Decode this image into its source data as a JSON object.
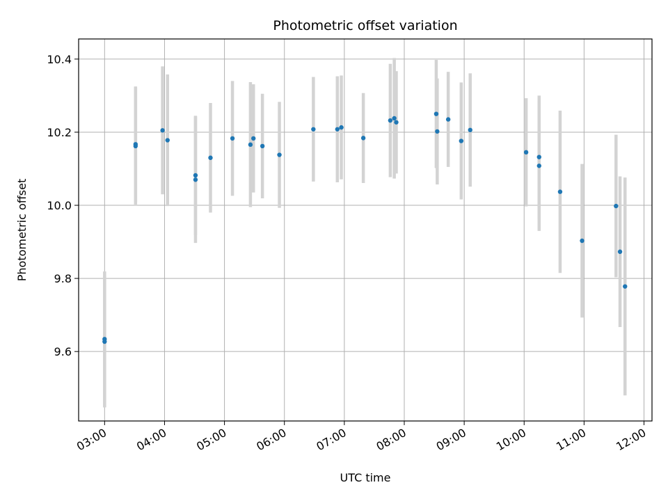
{
  "chart_data": {
    "type": "scatter",
    "title": "Photometric offset variation",
    "xlabel": "UTC time",
    "ylabel": "Photometric offset",
    "grid": true,
    "point_color": "#1f77b4",
    "errorbar_color": "#d3d3d3",
    "x_ticks": [
      "03:00",
      "04:00",
      "05:00",
      "06:00",
      "07:00",
      "08:00",
      "09:00",
      "10:00",
      "11:00",
      "12:00"
    ],
    "y_ticks": [
      9.6,
      9.8,
      10.0,
      10.2,
      10.4
    ],
    "xlim": [
      "02:34",
      "12:08"
    ],
    "ylim": [
      9.41,
      10.455
    ],
    "points": [
      {
        "x": "03:00",
        "y": 9.634,
        "err": 0.185
      },
      {
        "x": "03:00",
        "y": 9.627,
        "err": 0.18
      },
      {
        "x": "03:31",
        "y": 10.167,
        "err": 0.158
      },
      {
        "x": "03:31",
        "y": 10.162,
        "err": 0.16
      },
      {
        "x": "03:58",
        "y": 10.205,
        "err": 0.175
      },
      {
        "x": "04:03",
        "y": 10.178,
        "err": 0.18
      },
      {
        "x": "04:31",
        "y": 10.082,
        "err": 0.163
      },
      {
        "x": "04:31",
        "y": 10.07,
        "err": 0.173
      },
      {
        "x": "04:46",
        "y": 10.13,
        "err": 0.15
      },
      {
        "x": "05:08",
        "y": 10.183,
        "err": 0.157
      },
      {
        "x": "05:26",
        "y": 10.166,
        "err": 0.171
      },
      {
        "x": "05:29",
        "y": 10.183,
        "err": 0.148
      },
      {
        "x": "05:38",
        "y": 10.162,
        "err": 0.143
      },
      {
        "x": "05:55",
        "y": 10.138,
        "err": 0.145
      },
      {
        "x": "06:29",
        "y": 10.208,
        "err": 0.143
      },
      {
        "x": "06:53",
        "y": 10.208,
        "err": 0.145
      },
      {
        "x": "06:57",
        "y": 10.213,
        "err": 0.142
      },
      {
        "x": "07:19",
        "y": 10.184,
        "err": 0.123
      },
      {
        "x": "07:46",
        "y": 10.232,
        "err": 0.155
      },
      {
        "x": "07:50",
        "y": 10.238,
        "err": 0.165
      },
      {
        "x": "07:52",
        "y": 10.227,
        "err": 0.14
      },
      {
        "x": "08:32",
        "y": 10.25,
        "err": 0.148
      },
      {
        "x": "08:33",
        "y": 10.202,
        "err": 0.145
      },
      {
        "x": "08:44",
        "y": 10.235,
        "err": 0.13
      },
      {
        "x": "08:57",
        "y": 10.176,
        "err": 0.16
      },
      {
        "x": "09:06",
        "y": 10.206,
        "err": 0.155
      },
      {
        "x": "10:02",
        "y": 10.145,
        "err": 0.148
      },
      {
        "x": "10:15",
        "y": 10.132,
        "err": 0.168
      },
      {
        "x": "10:15",
        "y": 10.108,
        "err": 0.178
      },
      {
        "x": "10:36",
        "y": 10.037,
        "err": 0.222
      },
      {
        "x": "10:58",
        "y": 9.903,
        "err": 0.21
      },
      {
        "x": "11:32",
        "y": 9.998,
        "err": 0.195
      },
      {
        "x": "11:36",
        "y": 9.873,
        "err": 0.206
      },
      {
        "x": "11:41",
        "y": 9.778,
        "err": 0.298
      }
    ]
  }
}
